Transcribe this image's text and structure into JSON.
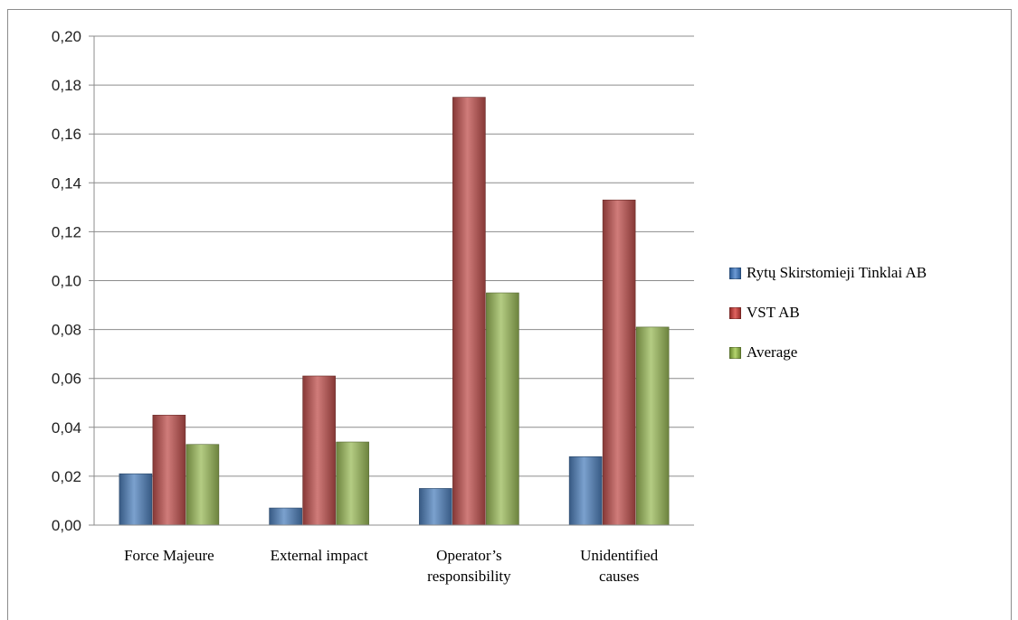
{
  "chart_data": {
    "type": "bar",
    "categories": [
      [
        "Force Majeure"
      ],
      [
        "External impact"
      ],
      [
        "Operator’s",
        "responsibility"
      ],
      [
        "Unidentified",
        "causes"
      ]
    ],
    "series": [
      {
        "name": "Rytų Skirstomieji Tinklai AB",
        "color": "#4f81bd",
        "values": [
          0.021,
          0.007,
          0.015,
          0.028
        ]
      },
      {
        "name": "VST AB",
        "color": "#c0504d",
        "values": [
          0.045,
          0.061,
          0.175,
          0.133
        ]
      },
      {
        "name": "Average",
        "color": "#9bbb59",
        "values": [
          0.033,
          0.034,
          0.095,
          0.081
        ]
      }
    ],
    "yticks": [
      "0,00",
      "0,02",
      "0,04",
      "0,06",
      "0,08",
      "0,10",
      "0,12",
      "0,14",
      "0,16",
      "0,18",
      "0,20"
    ],
    "ylim": [
      0,
      0.2
    ],
    "grid": true,
    "legend_position": "right"
  }
}
